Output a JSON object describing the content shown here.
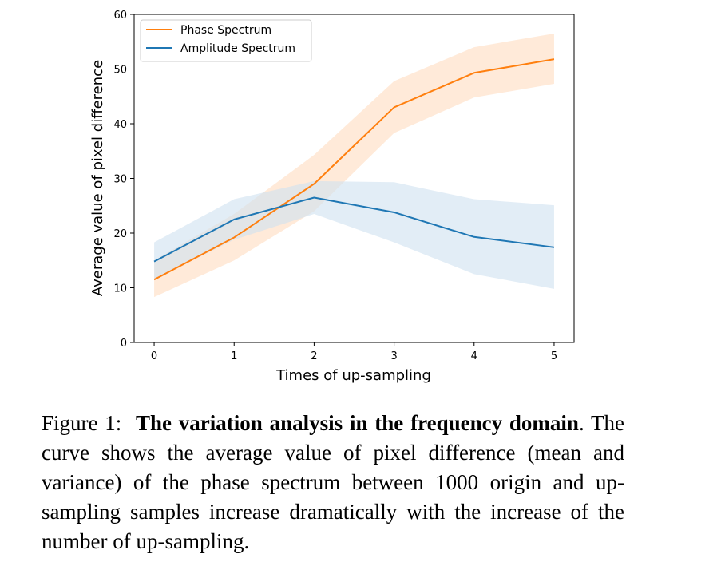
{
  "chart_data": {
    "type": "line",
    "xlabel": "Times of up-sampling",
    "ylabel": "Average value of pixel difference",
    "xlim": [
      -0.25,
      5.25
    ],
    "ylim": [
      0,
      60
    ],
    "x_ticks": [
      "0",
      "1",
      "2",
      "3",
      "4",
      "5"
    ],
    "y_ticks": [
      "0",
      "10",
      "20",
      "30",
      "40",
      "50",
      "60"
    ],
    "legend_position": "top-left",
    "x": [
      0,
      1,
      2,
      3,
      4,
      5
    ],
    "series": [
      {
        "name": "Phase Spectrum",
        "color": "#ff7f0e",
        "band_color": "#ffdcc0",
        "values": [
          11.5,
          19.2,
          29.0,
          43.0,
          49.3,
          51.8
        ],
        "lower": [
          8.3,
          15.0,
          24.0,
          38.3,
          44.8,
          47.3
        ],
        "upper": [
          15.0,
          23.5,
          34.3,
          47.8,
          54.0,
          56.5
        ]
      },
      {
        "name": "Amplitude Spectrum",
        "color": "#1f77b4",
        "band_color": "#cfe1f0",
        "values": [
          14.8,
          22.5,
          26.5,
          23.8,
          19.3,
          17.4
        ],
        "lower": [
          11.5,
          18.8,
          23.5,
          18.3,
          12.5,
          9.8
        ],
        "upper": [
          18.3,
          26.2,
          29.5,
          29.3,
          26.2,
          25.1
        ]
      }
    ]
  },
  "caption": {
    "label": "Figure 1:",
    "bold": "The variation analysis in the frequency domain",
    "rest": ". The curve shows the average value of pixel difference (mean and variance) of the phase spectrum between 1000 origin and up-sampling samples increase dramatically with the increase of the number of up-sampling."
  }
}
